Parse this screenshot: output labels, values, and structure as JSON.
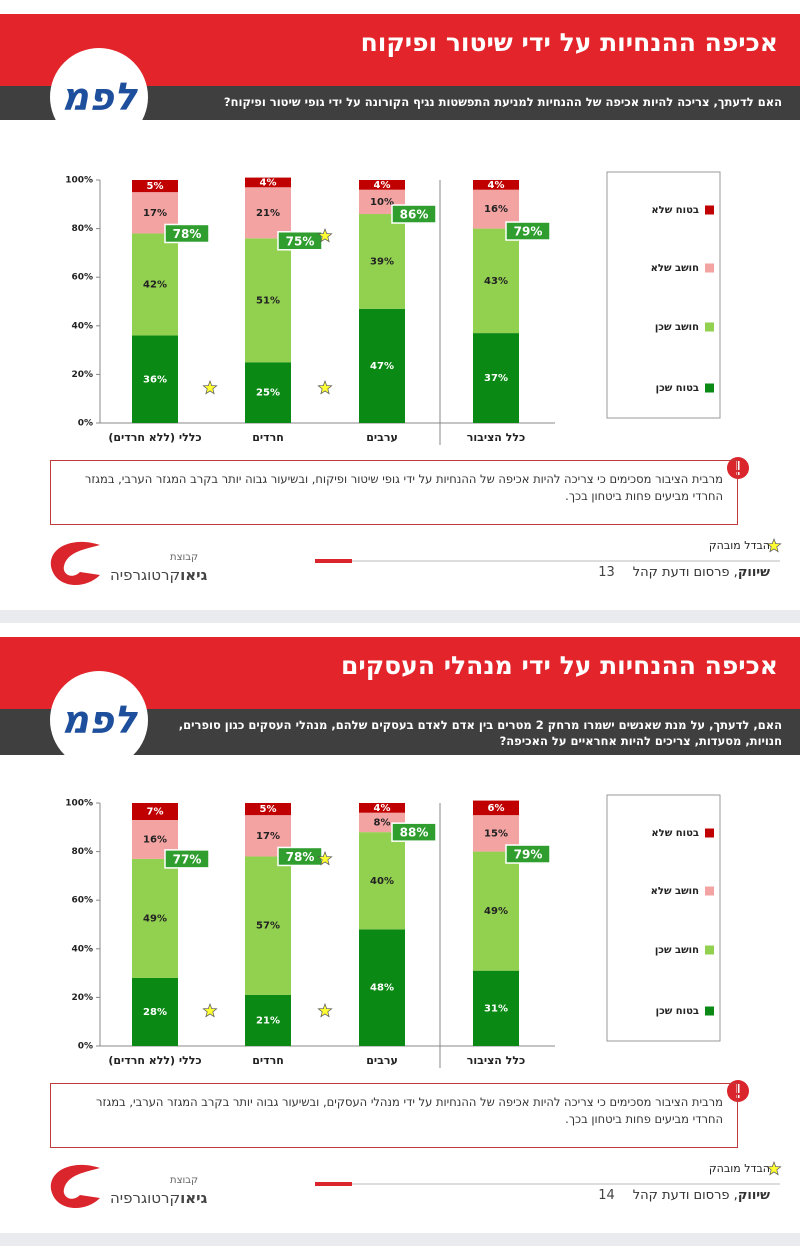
{
  "slides": [
    {
      "title": "אכיפה ההנחיות על ידי שיטור ופיקוח",
      "logo": "לפמ",
      "question": "האם לדעתך, צריכה להיות אכיפה של ההנחיות למניעת התפשטות נגיף הקורונה על ידי גופי שיטור ופיקוח?",
      "note": "מרבית הציבור מסכימים כי צריכה להיות אכיפה של ההנחיות על ידי גופי שיטור ופיקוח, ובשיעור גבוה יותר בקרב המגזר הערבי, במגזר החרדי מביעים פחות ביטחון בכך.",
      "significance": "הבדל מובהק",
      "company_small": "קבוצת",
      "company_bold": "גיאו",
      "company_rest": "קרטוגרפיה",
      "footer_bold": "שיווק",
      "footer_rest": ", פרסום ודעת קהל",
      "page": "13"
    },
    {
      "title": "אכיפה ההנחיות על ידי מנהלי העסקים",
      "logo": "לפמ",
      "question": "האם, לדעתך, על מנת שאנשים ישמרו מרחק 2 מטרים בין אדם לאדם בעסקים שלהם, מנהלי העסקים כגון סופרים, חנויות, מסעדות, צריכים להיות אחראיים על האכיפה?",
      "note": "מרבית הציבור מסכימים כי צריכה להיות אכיפה של ההנחיות על ידי מנהלי העסקים, ובשיעור גבוה יותר בקרב המגזר הערבי, במגזר החרדי מביעים פחות ביטחון בכך.",
      "significance": "הבדל מובהק",
      "company_small": "קבוצת",
      "company_bold": "גיאו",
      "company_rest": "קרטוגרפיה",
      "footer_bold": "שיווק",
      "footer_rest": ", פרסום ודעת קהל",
      "page": "14"
    }
  ],
  "chart_data": [
    {
      "type": "bar",
      "stacked": true,
      "categories": [
        "כללי (ללא חרדים)",
        "חרדים",
        "ערבים",
        "כלל הציבור"
      ],
      "series": [
        {
          "name": "בטוח שכן",
          "color": "#0a8a14",
          "values": [
            36,
            25,
            47,
            37
          ],
          "value_labels": [
            "36%",
            "25%",
            "47%",
            "37%"
          ]
        },
        {
          "name": "חושב שכן",
          "color": "#92d050",
          "values": [
            42,
            51,
            39,
            43
          ],
          "value_labels": [
            "42%",
            "51%",
            "39%",
            "43%"
          ]
        },
        {
          "name": "חושב שלא",
          "color": "#f4a3a3",
          "values": [
            17,
            21,
            10,
            16
          ],
          "value_labels": [
            "17%",
            "21%",
            "10%",
            "16%"
          ]
        },
        {
          "name": "בטוח שלא",
          "color": "#c00000",
          "values": [
            5,
            4,
            4,
            4
          ],
          "value_labels": [
            "5%",
            "4%",
            "4%",
            "4%"
          ]
        }
      ],
      "totals": {
        "values": [
          78,
          75,
          86,
          79
        ],
        "value_labels": [
          "78%",
          "75%",
          "86%",
          "79%"
        ]
      },
      "ylim": [
        0,
        100
      ],
      "yticks": [
        {
          "value": 0,
          "label": "0%"
        },
        {
          "value": 20,
          "label": "20%"
        },
        {
          "value": 40,
          "label": "40%"
        },
        {
          "value": 60,
          "label": "60%"
        },
        {
          "value": 80,
          "label": "80%"
        },
        {
          "value": 100,
          "label": "100%"
        }
      ],
      "legend": "right"
    },
    {
      "type": "bar",
      "stacked": true,
      "categories": [
        "כללי (ללא חרדים)",
        "חרדים",
        "ערבים",
        "כלל הציבור"
      ],
      "series": [
        {
          "name": "בטוח שכן",
          "color": "#0a8a14",
          "values": [
            28,
            21,
            48,
            31
          ],
          "value_labels": [
            "28%",
            "21%",
            "48%",
            "31%"
          ]
        },
        {
          "name": "חושב שכן",
          "color": "#92d050",
          "values": [
            49,
            57,
            40,
            49
          ],
          "value_labels": [
            "49%",
            "57%",
            "40%",
            "49%"
          ]
        },
        {
          "name": "חושב שלא",
          "color": "#f4a3a3",
          "values": [
            16,
            17,
            8,
            15
          ],
          "value_labels": [
            "16%",
            "17%",
            "8%",
            "15%"
          ]
        },
        {
          "name": "בטוח שלא",
          "color": "#c00000",
          "values": [
            7,
            5,
            4,
            6
          ],
          "value_labels": [
            "7%",
            "5%",
            "4%",
            "6%"
          ]
        }
      ],
      "totals": {
        "values": [
          77,
          78,
          88,
          79
        ],
        "value_labels": [
          "77%",
          "78%",
          "88%",
          "79%"
        ]
      },
      "ylim": [
        0,
        100
      ],
      "yticks": [
        {
          "value": 0,
          "label": "0%"
        },
        {
          "value": 20,
          "label": "20%"
        },
        {
          "value": 40,
          "label": "40%"
        },
        {
          "value": 60,
          "label": "60%"
        },
        {
          "value": 80,
          "label": "80%"
        },
        {
          "value": 100,
          "label": "100%"
        }
      ],
      "legend": "right"
    }
  ]
}
